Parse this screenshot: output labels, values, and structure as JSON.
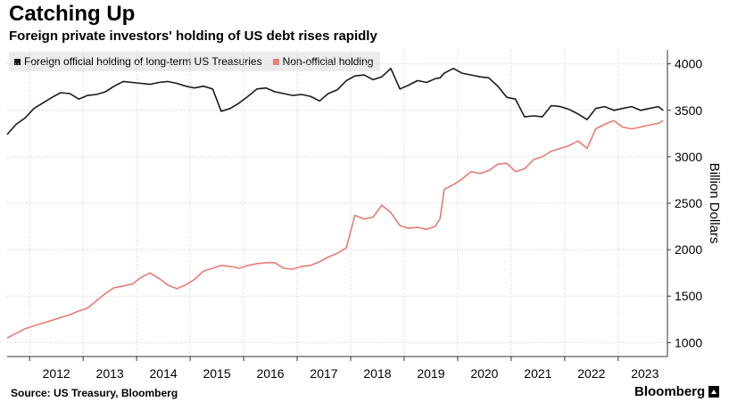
{
  "header": {
    "title": "Catching Up",
    "subtitle": "Foreign private investors' holding of US debt rises rapidly"
  },
  "footer": {
    "source": "Source: US Treasury, Bloomberg",
    "brand": "Bloomberg"
  },
  "colors": {
    "official": "#1a1a1a",
    "non_official": "#e87b73",
    "grid": "#cccccc",
    "legend_bg": "#ececec"
  },
  "chart_data": {
    "type": "line",
    "title": "Catching Up",
    "subtitle": "Foreign private investors' holding of US debt rises rapidly",
    "ylabel": "Billion Dollars",
    "xlabel": "",
    "y_axis_position": "right",
    "ylim": [
      850,
      4150
    ],
    "xlim": [
      2011.58,
      2023.92
    ],
    "yticks": [
      1000,
      1500,
      2000,
      2500,
      3000,
      3500,
      4000
    ],
    "ytick_labels": [
      "1000",
      "1500",
      "2000",
      "2500",
      "3000",
      "3500",
      "4000"
    ],
    "xticks": [
      2012,
      2013,
      2014,
      2015,
      2016,
      2017,
      2018,
      2019,
      2020,
      2021,
      2022,
      2023
    ],
    "xtick_labels": [
      "2012",
      "2013",
      "2014",
      "2015",
      "2016",
      "2017",
      "2018",
      "2019",
      "2020",
      "2021",
      "2022",
      "2023"
    ],
    "grid": "horizontal",
    "legend_position": "top-left",
    "series": [
      {
        "name": "Foreign official holding of long-term US Treasuries",
        "color": "#1a1a1a",
        "x": [
          2011.58,
          2011.75,
          2011.92,
          2012.08,
          2012.25,
          2012.42,
          2012.58,
          2012.75,
          2012.92,
          2013.08,
          2013.25,
          2013.42,
          2013.58,
          2013.75,
          2013.92,
          2014.08,
          2014.25,
          2014.42,
          2014.58,
          2014.75,
          2014.92,
          2015.08,
          2015.25,
          2015.42,
          2015.58,
          2015.75,
          2015.92,
          2016.08,
          2016.25,
          2016.42,
          2016.58,
          2016.75,
          2016.92,
          2017.08,
          2017.25,
          2017.42,
          2017.58,
          2017.75,
          2017.92,
          2018.08,
          2018.25,
          2018.42,
          2018.58,
          2018.75,
          2018.92,
          2019.08,
          2019.25,
          2019.42,
          2019.58,
          2019.67,
          2019.75,
          2019.92,
          2020.08,
          2020.25,
          2020.42,
          2020.58,
          2020.75,
          2020.92,
          2021.08,
          2021.25,
          2021.42,
          2021.58,
          2021.75,
          2021.92,
          2022.08,
          2022.25,
          2022.42,
          2022.58,
          2022.75,
          2022.92,
          2023.08,
          2023.25,
          2023.42,
          2023.58,
          2023.75,
          2023.84
        ],
        "values": [
          3240,
          3350,
          3420,
          3520,
          3580,
          3640,
          3690,
          3680,
          3620,
          3660,
          3670,
          3700,
          3760,
          3810,
          3800,
          3790,
          3780,
          3800,
          3810,
          3790,
          3760,
          3740,
          3760,
          3730,
          3490,
          3520,
          3580,
          3650,
          3730,
          3740,
          3700,
          3680,
          3660,
          3670,
          3650,
          3600,
          3680,
          3720,
          3820,
          3870,
          3880,
          3830,
          3860,
          3950,
          3730,
          3770,
          3820,
          3800,
          3840,
          3850,
          3900,
          3950,
          3900,
          3880,
          3860,
          3850,
          3760,
          3640,
          3620,
          3430,
          3440,
          3430,
          3550,
          3540,
          3510,
          3460,
          3400,
          3520,
          3540,
          3500,
          3520,
          3540,
          3500,
          3520,
          3540,
          3500
        ]
      },
      {
        "name": "Non-official holding",
        "color": "#e87b73",
        "x": [
          2011.58,
          2011.75,
          2011.92,
          2012.08,
          2012.25,
          2012.42,
          2012.58,
          2012.75,
          2012.92,
          2013.08,
          2013.25,
          2013.42,
          2013.58,
          2013.75,
          2013.92,
          2014.08,
          2014.25,
          2014.42,
          2014.58,
          2014.75,
          2014.92,
          2015.08,
          2015.25,
          2015.42,
          2015.58,
          2015.75,
          2015.92,
          2016.08,
          2016.25,
          2016.42,
          2016.58,
          2016.75,
          2016.92,
          2017.08,
          2017.25,
          2017.42,
          2017.58,
          2017.75,
          2017.92,
          2018.08,
          2018.25,
          2018.42,
          2018.58,
          2018.75,
          2018.92,
          2019.08,
          2019.25,
          2019.42,
          2019.58,
          2019.67,
          2019.75,
          2019.92,
          2020.08,
          2020.25,
          2020.42,
          2020.58,
          2020.75,
          2020.92,
          2021.08,
          2021.25,
          2021.42,
          2021.58,
          2021.75,
          2021.92,
          2022.08,
          2022.25,
          2022.42,
          2022.58,
          2022.75,
          2022.92,
          2023.08,
          2023.25,
          2023.42,
          2023.58,
          2023.75,
          2023.84
        ],
        "values": [
          1050,
          1100,
          1150,
          1180,
          1210,
          1240,
          1270,
          1300,
          1340,
          1370,
          1450,
          1530,
          1590,
          1610,
          1630,
          1700,
          1750,
          1690,
          1620,
          1580,
          1620,
          1680,
          1770,
          1800,
          1830,
          1820,
          1800,
          1830,
          1850,
          1860,
          1860,
          1800,
          1790,
          1820,
          1830,
          1870,
          1920,
          1960,
          2020,
          2370,
          2330,
          2350,
          2480,
          2400,
          2260,
          2230,
          2240,
          2220,
          2250,
          2330,
          2650,
          2700,
          2760,
          2840,
          2820,
          2850,
          2920,
          2930,
          2840,
          2870,
          2970,
          3000,
          3060,
          3090,
          3120,
          3170,
          3090,
          3300,
          3350,
          3390,
          3320,
          3300,
          3320,
          3340,
          3360,
          3390
        ]
      }
    ]
  }
}
